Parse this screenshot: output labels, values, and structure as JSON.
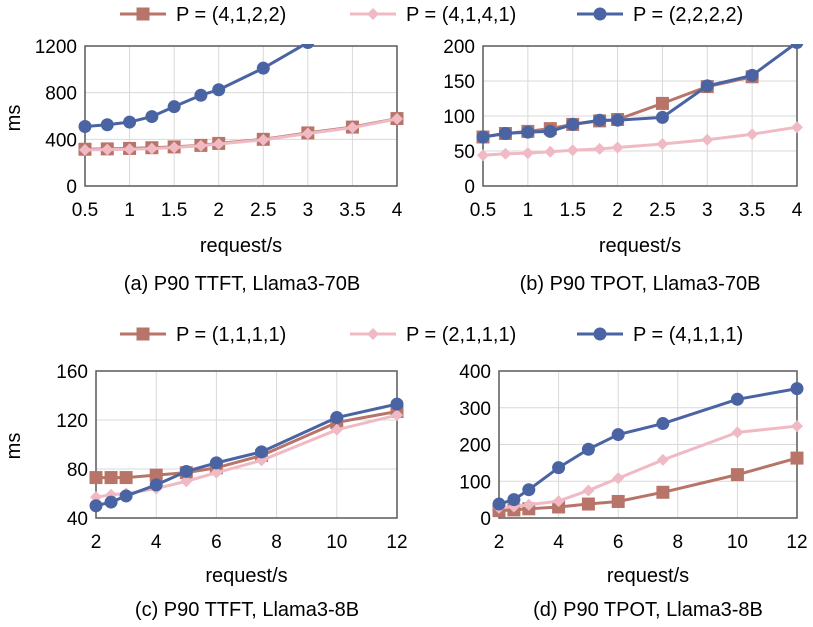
{
  "legends": [
    {
      "entries": [
        {
          "label": "P = (4,1,2,2)",
          "color": "#b87468",
          "marker": "square"
        },
        {
          "label": "P = (4,1,4,1)",
          "color": "#f0bac5",
          "marker": "diamond"
        },
        {
          "label": "P = (2,2,2,2)",
          "color": "#4a64a3",
          "marker": "circle"
        }
      ]
    },
    {
      "entries": [
        {
          "label": "P = (1,1,1,1)",
          "color": "#b87468",
          "marker": "square"
        },
        {
          "label": "P = (2,1,1,1)",
          "color": "#f0bac5",
          "marker": "diamond"
        },
        {
          "label": "P = (4,1,1,1)",
          "color": "#4a64a3",
          "marker": "circle"
        }
      ]
    }
  ],
  "chart_data": [
    {
      "type": "line",
      "title": "(a) P90 TTFT, Llama3-70B",
      "xlabel": "request/s",
      "ylabel": "ms",
      "xlim": [
        0.5,
        4
      ],
      "ylim": [
        0,
        1200
      ],
      "xticks": [
        0.5,
        1,
        1.5,
        2,
        2.5,
        3,
        3.5,
        4
      ],
      "xticklabels": [
        "0.5",
        "1",
        "1.5",
        "2",
        "2.5",
        "3",
        "3.5",
        "4"
      ],
      "yticks": [
        0,
        400,
        800,
        1200
      ],
      "yticklabels": [
        "0",
        "400",
        "800",
        "1200"
      ],
      "grid": true,
      "series": [
        {
          "name": "P = (4,1,2,2)",
          "color": "#b87468",
          "marker": "square",
          "x": [
            0.5,
            0.75,
            1.0,
            1.25,
            1.5,
            1.8,
            2.0,
            2.5,
            3.0,
            3.5,
            4.0
          ],
          "y": [
            315,
            318,
            322,
            328,
            335,
            348,
            365,
            400,
            455,
            505,
            578
          ]
        },
        {
          "name": "P = (4,1,4,1)",
          "color": "#f0bac5",
          "marker": "diamond",
          "x": [
            0.5,
            0.75,
            1.0,
            1.25,
            1.5,
            1.8,
            2.0,
            2.5,
            3.0,
            3.5,
            4.0
          ],
          "y": [
            310,
            312,
            315,
            320,
            330,
            345,
            360,
            395,
            450,
            500,
            575
          ]
        },
        {
          "name": "P = (2,2,2,2)",
          "color": "#4a64a3",
          "marker": "circle",
          "x": [
            0.5,
            0.75,
            1.0,
            1.25,
            1.5,
            1.8,
            2.0,
            2.5,
            3.0
          ],
          "y": [
            510,
            525,
            548,
            595,
            680,
            778,
            825,
            1010,
            1230
          ]
        }
      ]
    },
    {
      "type": "line",
      "title": "(b) P90 TPOT, Llama3-70B",
      "xlabel": "request/s",
      "ylabel": "",
      "xlim": [
        0.5,
        4
      ],
      "ylim": [
        0,
        200
      ],
      "xticks": [
        0.5,
        1,
        1.5,
        2,
        2.5,
        3,
        3.5,
        4
      ],
      "xticklabels": [
        "0.5",
        "1",
        "1.5",
        "2",
        "2.5",
        "3",
        "3.5",
        "4"
      ],
      "yticks": [
        0,
        50,
        100,
        150,
        200
      ],
      "yticklabels": [
        "0",
        "50",
        "100",
        "150",
        "200"
      ],
      "grid": true,
      "series": [
        {
          "name": "P = (4,1,2,2)",
          "color": "#b87468",
          "marker": "square",
          "x": [
            0.5,
            0.75,
            1.0,
            1.25,
            1.5,
            1.8,
            2.0,
            2.5,
            3.0,
            3.5
          ],
          "y": [
            70,
            75,
            78,
            82,
            88,
            93,
            95,
            118,
            142,
            156
          ]
        },
        {
          "name": "P = (4,1,4,1)",
          "color": "#f0bac5",
          "marker": "diamond",
          "x": [
            0.5,
            0.75,
            1.0,
            1.25,
            1.5,
            1.8,
            2.0,
            2.5,
            3.0,
            3.5,
            4.0
          ],
          "y": [
            44,
            46,
            47,
            49,
            51,
            53,
            55,
            60,
            66,
            74,
            84
          ]
        },
        {
          "name": "P = (2,2,2,2)",
          "color": "#4a64a3",
          "marker": "circle",
          "x": [
            0.5,
            0.75,
            1.0,
            1.25,
            1.5,
            1.8,
            2.0,
            2.5,
            3.0,
            3.5,
            4.0
          ],
          "y": [
            70,
            75,
            77,
            78,
            88,
            94,
            94,
            98,
            143,
            158,
            205
          ]
        }
      ]
    },
    {
      "type": "line",
      "title": "(c) P90 TTFT, Llama3-8B",
      "xlabel": "request/s",
      "ylabel": "ms",
      "xlim": [
        2,
        12
      ],
      "ylim": [
        40,
        160
      ],
      "xticks": [
        2,
        4,
        6,
        8,
        10,
        12
      ],
      "xticklabels": [
        "2",
        "4",
        "6",
        "8",
        "10",
        "12"
      ],
      "yticks": [
        40,
        80,
        120,
        160
      ],
      "yticklabels": [
        "40",
        "80",
        "120",
        "160"
      ],
      "grid": true,
      "series": [
        {
          "name": "P = (1,1,1,1)",
          "color": "#b87468",
          "marker": "square",
          "x": [
            2,
            2.5,
            3,
            4,
            5,
            6,
            7.5,
            10,
            12
          ],
          "y": [
            73,
            73,
            73,
            75,
            77,
            81,
            91,
            118,
            127
          ]
        },
        {
          "name": "P = (2,1,1,1)",
          "color": "#f0bac5",
          "marker": "diamond",
          "x": [
            2,
            2.5,
            3,
            4,
            5,
            6,
            7.5,
            10,
            12
          ],
          "y": [
            57,
            59,
            60,
            64,
            70,
            77,
            87,
            112,
            124
          ]
        },
        {
          "name": "P = (4,1,1,1)",
          "color": "#4a64a3",
          "marker": "circle",
          "x": [
            2,
            2.5,
            3,
            4,
            5,
            6,
            7.5,
            10,
            12
          ],
          "y": [
            50,
            53,
            58,
            67,
            78,
            85,
            94,
            122,
            133
          ]
        }
      ]
    },
    {
      "type": "line",
      "title": "(d) P90 TPOT, Llama3-8B",
      "xlabel": "request/s",
      "ylabel": "",
      "xlim": [
        2,
        12
      ],
      "ylim": [
        0,
        400
      ],
      "xticks": [
        2,
        4,
        6,
        8,
        10,
        12
      ],
      "xticklabels": [
        "2",
        "4",
        "6",
        "8",
        "10",
        "12"
      ],
      "yticks": [
        0,
        100,
        200,
        300,
        400
      ],
      "yticklabels": [
        "0",
        "100",
        "200",
        "300",
        "400"
      ],
      "grid": true,
      "series": [
        {
          "name": "P = (1,1,1,1)",
          "color": "#b87468",
          "marker": "square",
          "x": [
            2,
            2.5,
            3,
            4,
            5,
            6,
            7.5,
            10,
            12
          ],
          "y": [
            20,
            22,
            25,
            30,
            38,
            45,
            70,
            118,
            163
          ]
        },
        {
          "name": "P = (2,1,1,1)",
          "color": "#f0bac5",
          "marker": "diamond",
          "x": [
            2,
            2.5,
            3,
            4,
            5,
            6,
            7.5,
            10,
            12
          ],
          "y": [
            28,
            31,
            36,
            46,
            75,
            108,
            158,
            233,
            250
          ]
        },
        {
          "name": "P = (4,1,1,1)",
          "color": "#4a64a3",
          "marker": "circle",
          "x": [
            2,
            2.5,
            3,
            4,
            5,
            6,
            7.5,
            10,
            12
          ],
          "y": [
            38,
            50,
            77,
            137,
            187,
            227,
            257,
            323,
            352
          ]
        }
      ]
    }
  ]
}
